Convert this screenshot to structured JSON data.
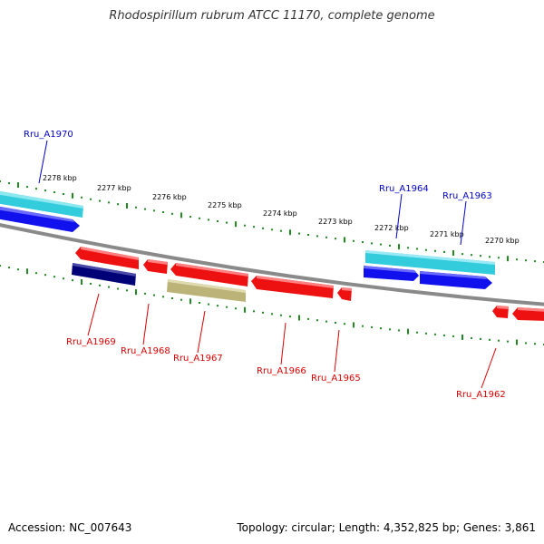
{
  "title": "Rhodospirillum rubrum ATCC 11170, complete genome",
  "footer": {
    "accession": "Accession: NC_007643",
    "summary": "Topology: circular; Length: 4,352,825 bp; Genes: 3,861"
  },
  "colors": {
    "backbone": "#8a8a8a",
    "ticks": "#228b22",
    "label_blue": "#0000cc",
    "label_red": "#dd0000",
    "gene_red": "#ee1111",
    "gene_blue": "#1111ee",
    "gene_cyan": "#33ccdd",
    "gene_navy": "#000077",
    "gene_khaki": "#bbb377"
  },
  "scale": {
    "tick_labels": [
      "2278 kbp",
      "2277 kbp",
      "2276 kbp",
      "2275 kbp",
      "2274 kbp",
      "2273 kbp",
      "2272 kbp",
      "2271 kbp",
      "2270 kbp"
    ]
  },
  "genes": {
    "top": [
      "Rru_A1970",
      "Rru_A1964",
      "Rru_A1963"
    ],
    "bottom": [
      "Rru_A1969",
      "Rru_A1968",
      "Rru_A1967",
      "Rru_A1966",
      "Rru_A1965",
      "Rru_A1962"
    ]
  }
}
